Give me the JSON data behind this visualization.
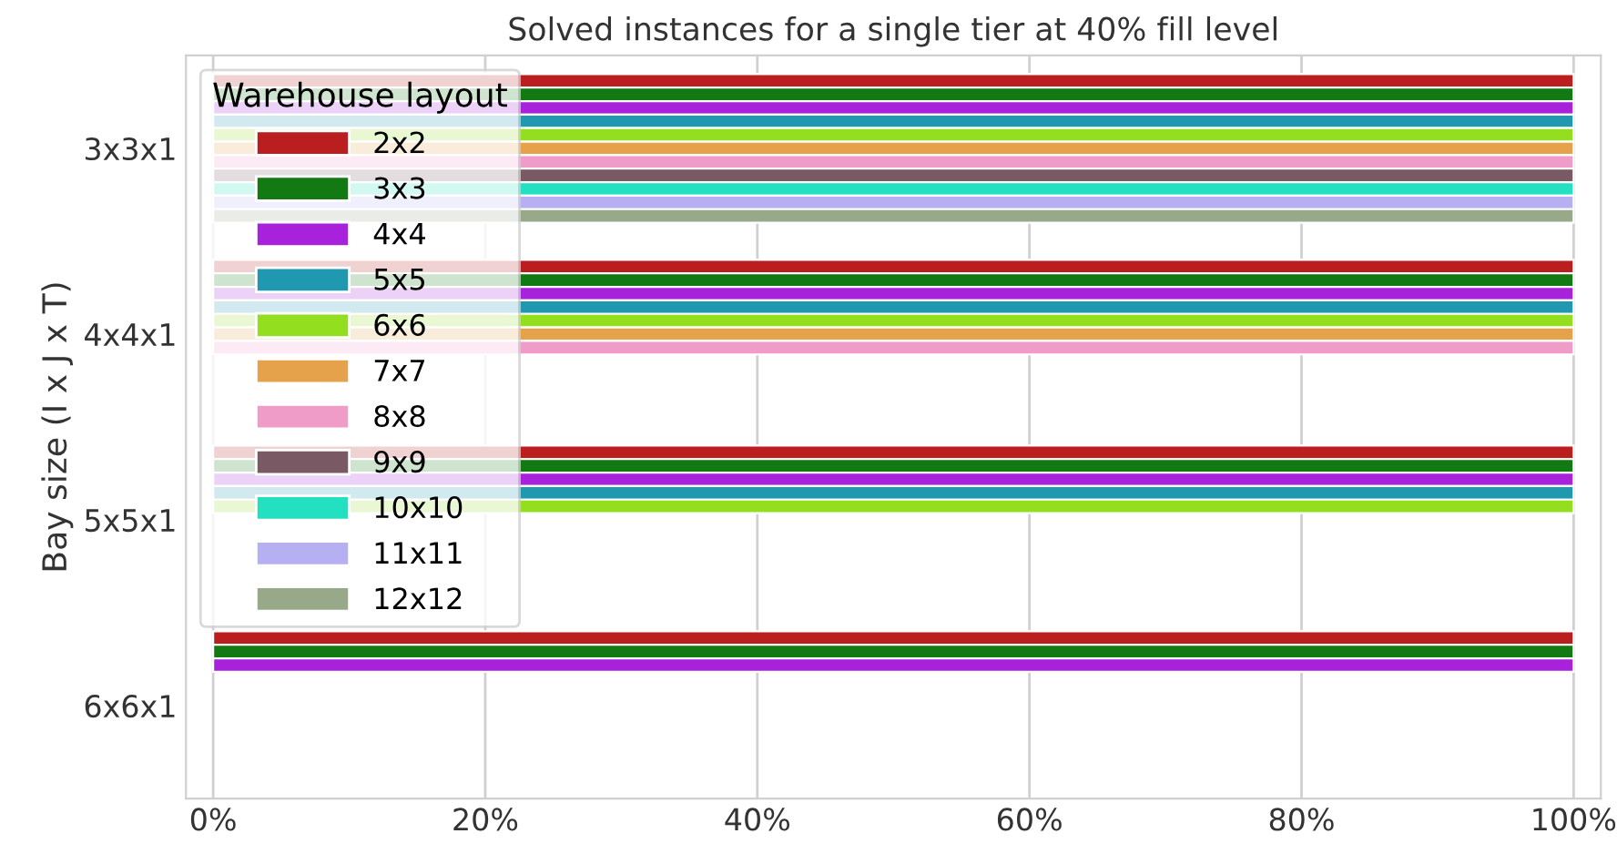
{
  "chart_data": {
    "type": "bar",
    "orientation": "horizontal",
    "title": "Solved instances for a single tier at 40% fill level",
    "ylabel": "Bay size (I x J x T)",
    "legend_title": "Warehouse layout",
    "legend": "top left",
    "grid": "x",
    "categories": [
      "3x3x1",
      "4x4x1",
      "5x5x1",
      "6x6x1"
    ],
    "xlim": [
      -0.02,
      1.02
    ],
    "xticks": [
      {
        "value": 0,
        "label": "0%"
      },
      {
        "value": 0.2,
        "label": "20%"
      },
      {
        "value": 0.4,
        "label": "40%"
      },
      {
        "value": 0.6,
        "label": "60%"
      },
      {
        "value": 0.8,
        "label": "80%"
      },
      {
        "value": 1,
        "label": "100%"
      }
    ],
    "series": [
      {
        "name": "2x2",
        "color": "#bb1e1e",
        "values": [
          1,
          1,
          1,
          1
        ]
      },
      {
        "name": "3x3",
        "color": "#137913",
        "values": [
          1,
          1,
          1,
          1
        ]
      },
      {
        "name": "4x4",
        "color": "#a822dc",
        "values": [
          1,
          1,
          1,
          1
        ]
      },
      {
        "name": "5x5",
        "color": "#2099b0",
        "values": [
          1,
          1,
          1,
          null
        ]
      },
      {
        "name": "6x6",
        "color": "#93df1f",
        "values": [
          1,
          1,
          1,
          null
        ]
      },
      {
        "name": "7x7",
        "color": "#e6a24b",
        "values": [
          1,
          1,
          null,
          null
        ]
      },
      {
        "name": "8x8",
        "color": "#f09cc9",
        "values": [
          1,
          1,
          null,
          null
        ]
      },
      {
        "name": "9x9",
        "color": "#785964",
        "values": [
          1,
          null,
          null,
          null
        ]
      },
      {
        "name": "10x10",
        "color": "#22e0c0",
        "values": [
          1,
          null,
          null,
          null
        ]
      },
      {
        "name": "11x11",
        "color": "#b6b0f2",
        "values": [
          1,
          null,
          null,
          null
        ]
      },
      {
        "name": "12x12",
        "color": "#98a98a",
        "values": [
          1,
          null,
          null,
          null
        ]
      }
    ]
  }
}
